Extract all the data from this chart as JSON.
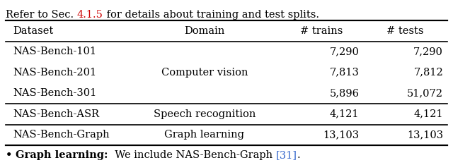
{
  "title_before": "Refer to Sec. ",
  "title_link": "4.1.5",
  "title_link_color": "#cc0000",
  "title_after": " for details about training and test splits.",
  "footer_bullet": "• ",
  "footer_bold": "Graph learning:",
  "footer_link": "[31]",
  "footer_link_color": "#3366cc",
  "footer_normal": "  We include NAS-Bench-Graph ",
  "footer_end": ".",
  "col_headers": [
    "Dataset",
    "Domain",
    "# trains",
    "# tests"
  ],
  "rows": [
    [
      "NAS-Bench-101",
      "",
      "7,290",
      "7,290"
    ],
    [
      "NAS-Bench-201",
      "Computer vision",
      "7,813",
      "7,812"
    ],
    [
      "NAS-Bench-301",
      "",
      "5,896",
      "51,072"
    ],
    [
      "NAS-Bench-ASR",
      "Speech recognition",
      "4,121",
      "4,121"
    ],
    [
      "NAS-Bench-Graph",
      "Graph learning",
      "13,103",
      "13,103"
    ]
  ],
  "background_color": "#ffffff",
  "text_color": "#000000",
  "font_size": 10.5
}
